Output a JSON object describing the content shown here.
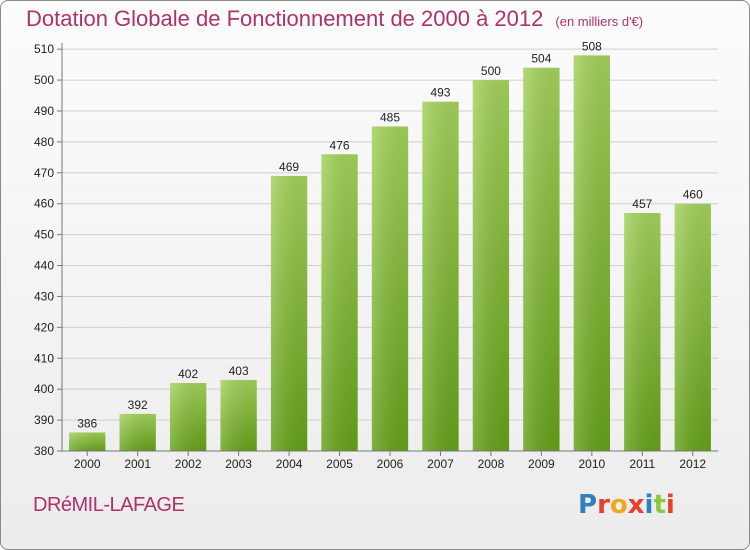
{
  "header": {
    "title": "Dotation Globale de Fonctionnement de 2000 à 2012",
    "subtitle": "(en milliers d'€)"
  },
  "footer": {
    "commune": "DRéMIL-LAFAGE",
    "logo_letters": [
      "P",
      "r",
      "o",
      "x",
      "i",
      "t",
      "i"
    ],
    "logo_colors": [
      "#2f7fc1",
      "#e8402a",
      "#f2a71b",
      "#e8402a",
      "#2f7fc1",
      "#8dc63f",
      "#e8402a"
    ]
  },
  "chart_data": {
    "type": "bar",
    "title": "Dotation Globale de Fonctionnement de 2000 à 2012",
    "subtitle": "(en milliers d'€)",
    "categories": [
      "2000",
      "2001",
      "2002",
      "2003",
      "2004",
      "2005",
      "2006",
      "2007",
      "2008",
      "2009",
      "2010",
      "2011",
      "2012"
    ],
    "values": [
      386,
      392,
      402,
      403,
      469,
      476,
      485,
      493,
      500,
      504,
      508,
      457,
      460
    ],
    "yticks": [
      "380",
      "390",
      "400",
      "410",
      "420",
      "430",
      "440",
      "450",
      "460",
      "470",
      "480",
      "490",
      "500",
      "510"
    ],
    "ylim": [
      380,
      512
    ],
    "grid": true,
    "bar_color_top": "#a2d15a",
    "bar_color_bottom": "#64a018"
  }
}
